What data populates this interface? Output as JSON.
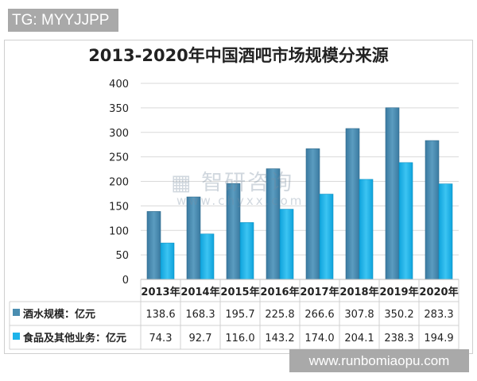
{
  "tag": "TG: MYYJJPP",
  "site": "www.runbomiaopu.com",
  "watermark": {
    "name": "智研咨询",
    "url": "www.chyxx.com"
  },
  "chart_data": {
    "type": "bar",
    "title": "2013-2020年中国酒吧市场规模分来源",
    "categories": [
      "2013年",
      "2014年",
      "2015年",
      "2016年",
      "2017年",
      "2018年",
      "2019年",
      "2020年"
    ],
    "series": [
      {
        "name": "酒水规模：亿元",
        "color": "#4a8db0",
        "values": [
          138.6,
          168.3,
          195.7,
          225.8,
          266.6,
          307.8,
          350.2,
          283.3
        ],
        "labels": [
          "138.6",
          "168.3",
          "195.7",
          "225.8",
          "266.6",
          "307.8",
          "350.2",
          "283.3"
        ]
      },
      {
        "name": "食品及其他业务：亿元",
        "color": "#1db3ea",
        "values": [
          74.3,
          92.7,
          116.0,
          143.2,
          174.0,
          204.1,
          238.3,
          194.9
        ],
        "labels": [
          "74.3",
          "92.7",
          "116.0",
          "143.2",
          "174.0",
          "204.1",
          "238.3",
          "194.9"
        ]
      }
    ],
    "yticks": [
      "0",
      "50",
      "100",
      "150",
      "200",
      "250",
      "300",
      "350",
      "400"
    ],
    "ylim": [
      0,
      400
    ],
    "grid": true,
    "legend": "data-table"
  }
}
